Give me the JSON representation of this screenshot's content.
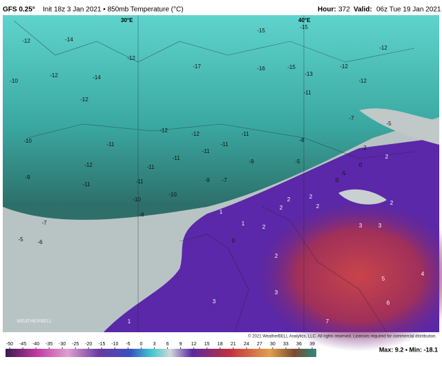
{
  "header": {
    "model": "GFS 0.25°",
    "info": "Init 18z 3 Jan 2021 • 850mb Temperature (°C)",
    "hour_label": "Hour:",
    "hour": "372",
    "valid_label": "Valid:",
    "valid": "06z Tue 19 Jan 2021"
  },
  "map": {
    "longitude_labels": [
      "30°E",
      "40°E"
    ],
    "contour_labels": [
      -12,
      -14,
      -12,
      -10,
      -12,
      -14,
      -12,
      -17,
      -16,
      -15,
      -15,
      -15,
      -13,
      -12,
      -12,
      -12,
      -11,
      -7,
      -5,
      -10,
      -12,
      -11,
      -12,
      -12,
      -11,
      -11,
      -11,
      -8,
      -2,
      0,
      2,
      -9,
      -5,
      -11,
      -11,
      -11,
      -9,
      -7,
      -10,
      -10,
      -5,
      0,
      2,
      2,
      2,
      1,
      1,
      2,
      0,
      2,
      3,
      3,
      2,
      2,
      4,
      5,
      6,
      3,
      3,
      7,
      1,
      -6,
      -7,
      -6,
      -5,
      -9,
      -11
    ],
    "copyright": "© 2021 WeatherBELL Analytics, LLC. All rights reserved. Licenses required for commercial distribution.",
    "watermark": "WEATHERBELL"
  },
  "colorbar": {
    "ticks": [
      -50,
      -45,
      -40,
      -35,
      -30,
      -25,
      -20,
      -15,
      -10,
      -5,
      0,
      3,
      6,
      9,
      12,
      15,
      18,
      21,
      24,
      27,
      30,
      33,
      36,
      39
    ]
  },
  "footer": {
    "stats": "Max: 9.2 • Min: -18.1"
  }
}
